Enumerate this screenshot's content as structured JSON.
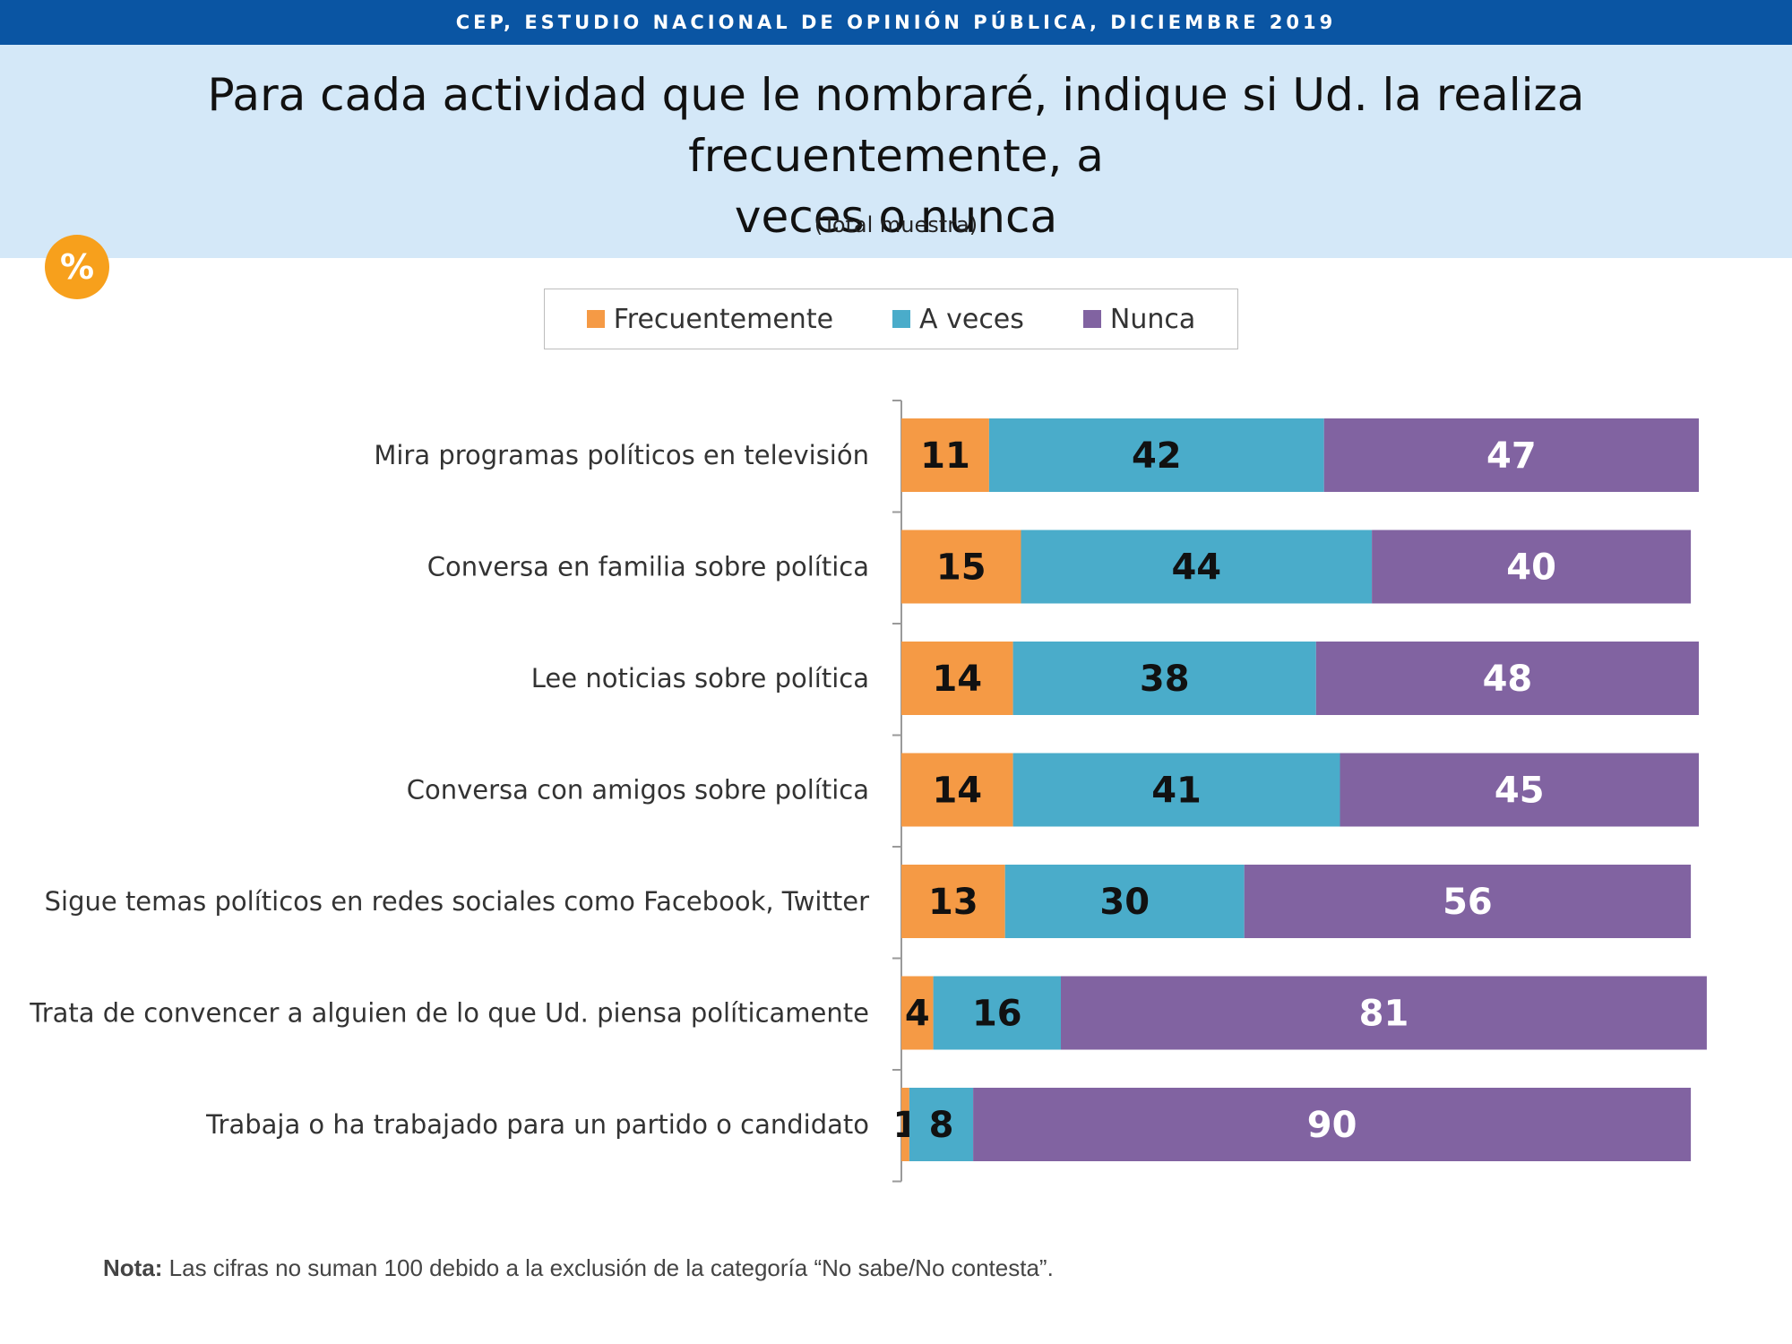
{
  "header": {
    "source": "CEP, ESTUDIO NACIONAL DE OPINIÓN PÚBLICA, DICIEMBRE 2019",
    "title_line1": "Para cada actividad que le nombraré, indique si Ud. la realiza frecuentemente, a",
    "title_line2": "veces o nunca",
    "subtitle": "(Total muestra)"
  },
  "badge": {
    "label": "%",
    "icon": "percent-icon",
    "color": "#f7a01c"
  },
  "legend": [
    {
      "label": "Frecuentemente",
      "color": "#f59a45"
    },
    {
      "label": "A veces",
      "color": "#4aacca"
    },
    {
      "label": "Nunca",
      "color": "#8163a1"
    }
  ],
  "note": {
    "label": "Nota:",
    "text": " Las cifras no suman 100 debido a la exclusión de la categoría “No sabe/No contesta”."
  },
  "chart_data": {
    "type": "bar",
    "orientation": "horizontal",
    "stacked": true,
    "unit": "%",
    "xlim": [
      0,
      100
    ],
    "grid": false,
    "legend_position": "top",
    "categories": [
      "Mira programas políticos en televisión",
      "Conversa en familia sobre política",
      "Lee noticias sobre política",
      "Conversa con amigos sobre política",
      "Sigue temas políticos en redes sociales como Facebook, Twitter",
      "Trata de convencer a alguien de lo que Ud. piensa políticamente",
      "Trabaja o ha trabajado para un partido o candidato"
    ],
    "series": [
      {
        "name": "Frecuentemente",
        "color": "#f59a45",
        "label_color": "#111111",
        "values": [
          11,
          15,
          14,
          14,
          13,
          4,
          1
        ]
      },
      {
        "name": "A veces",
        "color": "#4aacca",
        "label_color": "#111111",
        "values": [
          42,
          44,
          38,
          41,
          30,
          16,
          8
        ]
      },
      {
        "name": "Nunca",
        "color": "#8163a1",
        "label_color": "#ffffff",
        "values": [
          47,
          40,
          48,
          45,
          56,
          81,
          90
        ]
      }
    ]
  }
}
